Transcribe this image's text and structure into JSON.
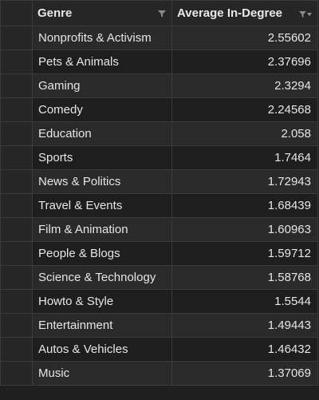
{
  "table": {
    "columns": [
      {
        "label": "Genre",
        "icon": "filter-icon"
      },
      {
        "label": "Average In-Degree",
        "icon": "sort-filter-icon"
      }
    ],
    "rows": [
      {
        "genre": "Nonprofits & Activism",
        "value": "2.55602"
      },
      {
        "genre": "Pets & Animals",
        "value": "2.37696"
      },
      {
        "genre": "Gaming",
        "value": "2.3294"
      },
      {
        "genre": "Comedy",
        "value": "2.24568"
      },
      {
        "genre": "Education",
        "value": "2.058"
      },
      {
        "genre": "Sports",
        "value": "1.7464"
      },
      {
        "genre": "News & Politics",
        "value": "1.72943"
      },
      {
        "genre": "Travel & Events",
        "value": "1.68439"
      },
      {
        "genre": "Film & Animation",
        "value": "1.60963"
      },
      {
        "genre": "People & Blogs",
        "value": "1.59712"
      },
      {
        "genre": "Science & Technology",
        "value": "1.58768"
      },
      {
        "genre": "Howto & Style",
        "value": "1.5544"
      },
      {
        "genre": "Entertainment",
        "value": "1.49443"
      },
      {
        "genre": "Autos & Vehicles",
        "value": "1.46432"
      },
      {
        "genre": "Music",
        "value": "1.37069"
      }
    ]
  },
  "colors": {
    "background": "#1f1f1f",
    "header_bg": "#262626",
    "row_alt_bg": "#2a2a2a",
    "text": "#e6e6e6",
    "grid_line": "#3b3b3b"
  }
}
